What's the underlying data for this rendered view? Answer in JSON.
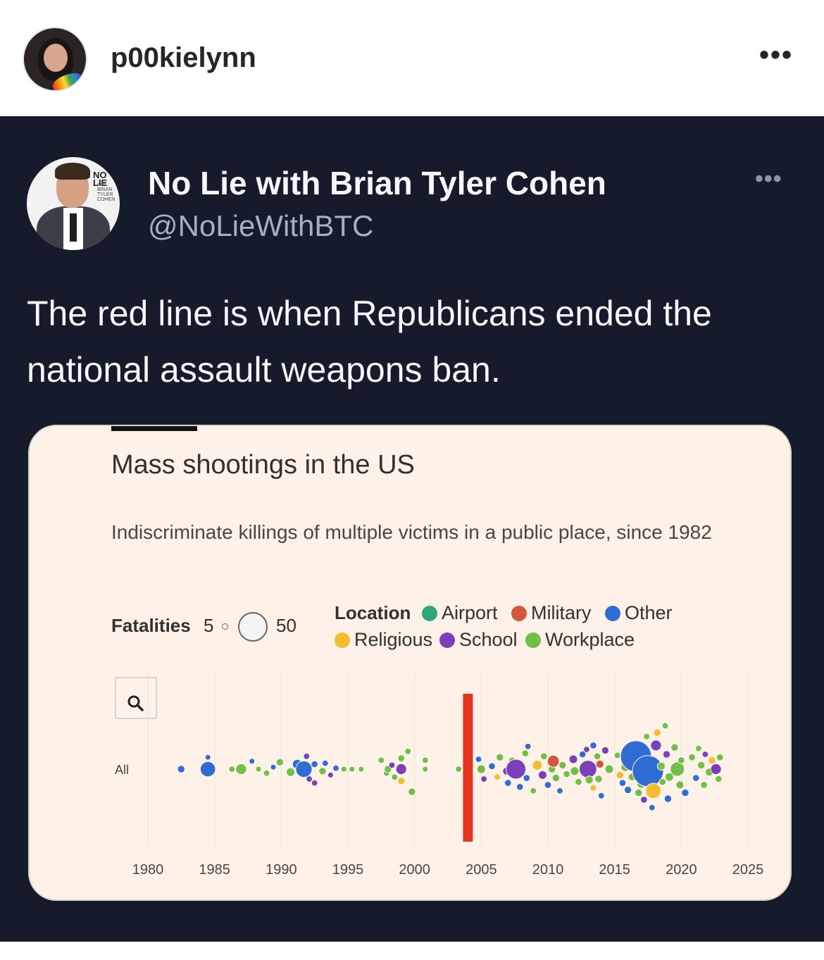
{
  "instagram": {
    "username": "p00kielynn",
    "more_label": "•••"
  },
  "tweet": {
    "name": "No Lie with Brian Tyler Cohen",
    "handle": "@NoLieWithBTC",
    "more_label": "•••",
    "text": "The red line is when Republicans ended the national assault weapons ban.",
    "avatar_logo": "NO LIE",
    "avatar_logo_sub": "with BRIAN TYLER COHEN"
  },
  "colors": {
    "airport": "#2fa67a",
    "military": "#d4563c",
    "other": "#2f6dd4",
    "religious": "#f2bd2f",
    "school": "#7b3fb8",
    "workplace": "#6fbf4a",
    "marker": "#e2361e"
  },
  "chart_data": {
    "type": "scatter",
    "title": "Mass shootings in the US",
    "subtitle": "Indiscriminate killings of multiple victims in a public place, since 1982",
    "size_legend": {
      "label": "Fatalities",
      "min": "5",
      "max": "50"
    },
    "legend_title": "Location",
    "categories": [
      "Airport",
      "Military",
      "Other",
      "Religious",
      "School",
      "Workplace"
    ],
    "row_label": "All",
    "x_ticks": [
      "1980",
      "1985",
      "1990",
      "1995",
      "2000",
      "2005",
      "2010",
      "2015",
      "2020",
      "2025"
    ],
    "xlim": [
      1980,
      2025
    ],
    "marker_year": 2004,
    "points": [
      {
        "year": 1982.5,
        "off": 0,
        "f": 8,
        "c": "Other"
      },
      {
        "year": 1984.5,
        "off": 0,
        "f": 22,
        "c": "Other"
      },
      {
        "year": 1984.5,
        "off": -1.2,
        "f": 5,
        "c": "Other"
      },
      {
        "year": 1986.3,
        "off": 0,
        "f": 6,
        "c": "Workplace"
      },
      {
        "year": 1987.0,
        "off": 0,
        "f": 14,
        "c": "Workplace"
      },
      {
        "year": 1987.8,
        "off": -0.8,
        "f": 5,
        "c": "Other"
      },
      {
        "year": 1988.3,
        "off": 0,
        "f": 5,
        "c": "Workplace"
      },
      {
        "year": 1988.9,
        "off": 0.4,
        "f": 6,
        "c": "Workplace"
      },
      {
        "year": 1989.4,
        "off": -0.2,
        "f": 5,
        "c": "Other"
      },
      {
        "year": 1989.9,
        "off": -0.7,
        "f": 8,
        "c": "Workplace"
      },
      {
        "year": 1990.7,
        "off": 0.3,
        "f": 10,
        "c": "Workplace"
      },
      {
        "year": 1991.2,
        "off": -0.5,
        "f": 12,
        "c": "Other"
      },
      {
        "year": 1991.7,
        "off": 0,
        "f": 24,
        "c": "Other"
      },
      {
        "year": 1991.9,
        "off": -1.3,
        "f": 6,
        "c": "School"
      },
      {
        "year": 1992.1,
        "off": 1.0,
        "f": 6,
        "c": "School"
      },
      {
        "year": 1992.5,
        "off": -0.5,
        "f": 7,
        "c": "Other"
      },
      {
        "year": 1992.5,
        "off": 1.4,
        "f": 6,
        "c": "School"
      },
      {
        "year": 1993.1,
        "off": 0.2,
        "f": 8,
        "c": "Workplace"
      },
      {
        "year": 1993.3,
        "off": -0.6,
        "f": 6,
        "c": "Other"
      },
      {
        "year": 1993.7,
        "off": 0.6,
        "f": 5,
        "c": "School"
      },
      {
        "year": 1994.1,
        "off": -0.1,
        "f": 6,
        "c": "Other"
      },
      {
        "year": 1994.7,
        "off": 0,
        "f": 5,
        "c": "Workplace"
      },
      {
        "year": 1995.3,
        "off": 0,
        "f": 5,
        "c": "Workplace"
      },
      {
        "year": 1996.0,
        "off": 0,
        "f": 5,
        "c": "Workplace"
      },
      {
        "year": 1997.5,
        "off": -0.9,
        "f": 6,
        "c": "Workplace"
      },
      {
        "year": 1997.9,
        "off": 0.4,
        "f": 6,
        "c": "Workplace"
      },
      {
        "year": 1998.0,
        "off": 0,
        "f": 8,
        "c": "Workplace"
      },
      {
        "year": 1998.3,
        "off": -0.4,
        "f": 6,
        "c": "School"
      },
      {
        "year": 1998.5,
        "off": 0.8,
        "f": 6,
        "c": "Workplace"
      },
      {
        "year": 1999.0,
        "off": 0,
        "f": 14,
        "c": "School"
      },
      {
        "year": 1999.0,
        "off": -1.1,
        "f": 7,
        "c": "Workplace"
      },
      {
        "year": 1999.0,
        "off": 1.2,
        "f": 8,
        "c": "Religious"
      },
      {
        "year": 1999.5,
        "off": -1.8,
        "f": 6,
        "c": "Workplace"
      },
      {
        "year": 1999.8,
        "off": 2.3,
        "f": 8,
        "c": "Workplace"
      },
      {
        "year": 2000.8,
        "off": 0,
        "f": 5,
        "c": "Workplace"
      },
      {
        "year": 2000.8,
        "off": -0.9,
        "f": 6,
        "c": "Workplace"
      },
      {
        "year": 2003.3,
        "off": 0,
        "f": 6,
        "c": "Workplace"
      },
      {
        "year": 2004.8,
        "off": -1.0,
        "f": 6,
        "c": "Other"
      },
      {
        "year": 2005.0,
        "off": 0,
        "f": 10,
        "c": "Workplace"
      },
      {
        "year": 2005.2,
        "off": 1.0,
        "f": 6,
        "c": "School"
      },
      {
        "year": 2005.8,
        "off": -0.3,
        "f": 7,
        "c": "Other"
      },
      {
        "year": 2006.2,
        "off": 0.8,
        "f": 6,
        "c": "Religious"
      },
      {
        "year": 2006.4,
        "off": -1.2,
        "f": 8,
        "c": "Workplace"
      },
      {
        "year": 2006.9,
        "off": 0.2,
        "f": 9,
        "c": "School"
      },
      {
        "year": 2007.0,
        "off": 1.4,
        "f": 7,
        "c": "Other"
      },
      {
        "year": 2007.3,
        "off": -0.9,
        "f": 6,
        "c": "Workplace"
      },
      {
        "year": 2007.6,
        "off": 0,
        "f": 30,
        "c": "School"
      },
      {
        "year": 2007.9,
        "off": 1.8,
        "f": 7,
        "c": "Other"
      },
      {
        "year": 2008.3,
        "off": -1.6,
        "f": 7,
        "c": "Workplace"
      },
      {
        "year": 2008.4,
        "off": 0.9,
        "f": 7,
        "c": "Other"
      },
      {
        "year": 2008.5,
        "off": -2.3,
        "f": 6,
        "c": "Other"
      },
      {
        "year": 2008.9,
        "off": 2.2,
        "f": 6,
        "c": "Workplace"
      },
      {
        "year": 2009.2,
        "off": -0.4,
        "f": 12,
        "c": "Religious"
      },
      {
        "year": 2009.6,
        "off": 0.6,
        "f": 10,
        "c": "School"
      },
      {
        "year": 2009.7,
        "off": -1.3,
        "f": 7,
        "c": "Workplace"
      },
      {
        "year": 2010.0,
        "off": 1.6,
        "f": 7,
        "c": "Other"
      },
      {
        "year": 2010.3,
        "off": 0,
        "f": 8,
        "c": "Workplace"
      },
      {
        "year": 2010.4,
        "off": -0.8,
        "f": 16,
        "c": "Military"
      },
      {
        "year": 2010.6,
        "off": 0.9,
        "f": 8,
        "c": "Workplace"
      },
      {
        "year": 2010.9,
        "off": 2.2,
        "f": 6,
        "c": "Other"
      },
      {
        "year": 2011.1,
        "off": -0.4,
        "f": 8,
        "c": "Workplace"
      },
      {
        "year": 2011.4,
        "off": 0.5,
        "f": 7,
        "c": "Workplace"
      },
      {
        "year": 2011.9,
        "off": -1.0,
        "f": 10,
        "c": "School"
      },
      {
        "year": 2012.0,
        "off": 0.2,
        "f": 10,
        "c": "Workplace"
      },
      {
        "year": 2012.3,
        "off": 1.3,
        "f": 7,
        "c": "Workplace"
      },
      {
        "year": 2012.6,
        "off": -1.5,
        "f": 7,
        "c": "Other"
      },
      {
        "year": 2012.7,
        "off": -0.1,
        "f": 14,
        "c": "Other"
      },
      {
        "year": 2012.9,
        "off": -2.0,
        "f": 6,
        "c": "School"
      },
      {
        "year": 2013.0,
        "off": 0,
        "f": 26,
        "c": "School"
      },
      {
        "year": 2013.1,
        "off": 1.1,
        "f": 9,
        "c": "Workplace"
      },
      {
        "year": 2013.4,
        "off": -2.4,
        "f": 7,
        "c": "Other"
      },
      {
        "year": 2013.4,
        "off": 1.9,
        "f": 6,
        "c": "Religious"
      },
      {
        "year": 2013.7,
        "off": -1.3,
        "f": 7,
        "c": "Workplace"
      },
      {
        "year": 2013.8,
        "off": 1.0,
        "f": 8,
        "c": "Workplace"
      },
      {
        "year": 2013.9,
        "off": -0.5,
        "f": 9,
        "c": "Military"
      },
      {
        "year": 2014.0,
        "off": 2.7,
        "f": 6,
        "c": "Other"
      },
      {
        "year": 2014.3,
        "off": -1.9,
        "f": 8,
        "c": "School"
      },
      {
        "year": 2014.6,
        "off": 0,
        "f": 10,
        "c": "Workplace"
      },
      {
        "year": 2015.2,
        "off": -1.4,
        "f": 6,
        "c": "Workplace"
      },
      {
        "year": 2015.4,
        "off": 0.6,
        "f": 8,
        "c": "Religious"
      },
      {
        "year": 2015.6,
        "off": 1.4,
        "f": 7,
        "c": "Other"
      },
      {
        "year": 2015.8,
        "off": -0.2,
        "f": 10,
        "c": "Workplace"
      },
      {
        "year": 2016.0,
        "off": 2.1,
        "f": 8,
        "c": "Other"
      },
      {
        "year": 2016.2,
        "off": -2.3,
        "f": 6,
        "c": "School"
      },
      {
        "year": 2016.3,
        "off": 0.8,
        "f": 8,
        "c": "Workplace"
      },
      {
        "year": 2016.6,
        "off": -1.3,
        "f": 50,
        "c": "Other"
      },
      {
        "year": 2016.8,
        "off": 2.4,
        "f": 8,
        "c": "Workplace"
      },
      {
        "year": 2017.0,
        "off": 1.5,
        "f": 10,
        "c": "Workplace"
      },
      {
        "year": 2017.2,
        "off": 3.1,
        "f": 7,
        "c": "School"
      },
      {
        "year": 2017.4,
        "off": -3.3,
        "f": 6,
        "c": "Workplace"
      },
      {
        "year": 2017.5,
        "off": 0.2,
        "f": 50,
        "c": "Other"
      },
      {
        "year": 2017.8,
        "off": 3.9,
        "f": 6,
        "c": "Other"
      },
      {
        "year": 2017.9,
        "off": 2.2,
        "f": 22,
        "c": "Religious"
      },
      {
        "year": 2018.1,
        "off": -2.4,
        "f": 14,
        "c": "School"
      },
      {
        "year": 2018.2,
        "off": -3.7,
        "f": 8,
        "c": "Religious"
      },
      {
        "year": 2018.5,
        "off": -0.3,
        "f": 9,
        "c": "Workplace"
      },
      {
        "year": 2018.6,
        "off": 1.3,
        "f": 7,
        "c": "Workplace"
      },
      {
        "year": 2018.8,
        "off": -4.4,
        "f": 6,
        "c": "Workplace"
      },
      {
        "year": 2018.9,
        "off": -1.5,
        "f": 8,
        "c": "School"
      },
      {
        "year": 2019.0,
        "off": 3.0,
        "f": 8,
        "c": "Other"
      },
      {
        "year": 2019.1,
        "off": 0.8,
        "f": 10,
        "c": "Workplace"
      },
      {
        "year": 2019.5,
        "off": -2.2,
        "f": 8,
        "c": "Workplace"
      },
      {
        "year": 2019.7,
        "off": 0,
        "f": 20,
        "c": "Workplace"
      },
      {
        "year": 2019.9,
        "off": 1.6,
        "f": 9,
        "c": "Workplace"
      },
      {
        "year": 2020.0,
        "off": -0.9,
        "f": 7,
        "c": "Workplace"
      },
      {
        "year": 2020.3,
        "off": 2.4,
        "f": 8,
        "c": "Other"
      },
      {
        "year": 2020.8,
        "off": -1.2,
        "f": 7,
        "c": "Workplace"
      },
      {
        "year": 2021.1,
        "off": 0.9,
        "f": 7,
        "c": "Other"
      },
      {
        "year": 2021.3,
        "off": -2.1,
        "f": 6,
        "c": "Workplace"
      },
      {
        "year": 2021.5,
        "off": -0.4,
        "f": 8,
        "c": "Workplace"
      },
      {
        "year": 2021.7,
        "off": 1.6,
        "f": 7,
        "c": "Workplace"
      },
      {
        "year": 2021.8,
        "off": -1.5,
        "f": 6,
        "c": "School"
      },
      {
        "year": 2022.1,
        "off": 0.3,
        "f": 9,
        "c": "Workplace"
      },
      {
        "year": 2022.3,
        "off": -0.9,
        "f": 8,
        "c": "Religious"
      },
      {
        "year": 2022.6,
        "off": 0,
        "f": 14,
        "c": "School"
      },
      {
        "year": 2022.8,
        "off": 1.0,
        "f": 7,
        "c": "Workplace"
      },
      {
        "year": 2022.9,
        "off": -1.2,
        "f": 7,
        "c": "Workplace"
      }
    ]
  }
}
